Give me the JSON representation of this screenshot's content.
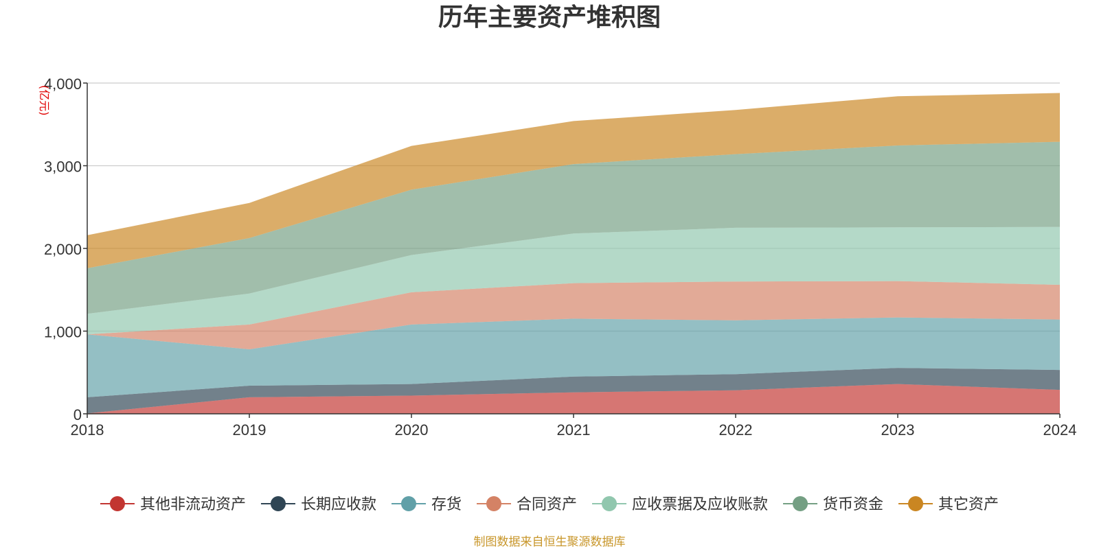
{
  "chart_data": {
    "type": "area",
    "stacked": true,
    "title": "历年主要资产堆积图",
    "ylabel": "(亿元)",
    "xlabel": "",
    "categories": [
      "2018",
      "2019",
      "2020",
      "2021",
      "2022",
      "2023",
      "2024"
    ],
    "ylim": [
      0,
      4000
    ],
    "yticks": [
      0,
      1000,
      2000,
      3000,
      4000
    ],
    "ytick_labels": [
      "0",
      "1,000",
      "2,000",
      "3,000",
      "4,000"
    ],
    "grid": true,
    "legend_position": "bottom",
    "series": [
      {
        "name": "其他非流动资产",
        "color": "#c23531",
        "values": [
          5,
          200,
          220,
          260,
          285,
          360,
          290
        ]
      },
      {
        "name": "长期应收款",
        "color": "#2f4554",
        "values": [
          195,
          140,
          140,
          190,
          195,
          195,
          240
        ]
      },
      {
        "name": "存货",
        "color": "#61a0a8",
        "values": [
          760,
          440,
          720,
          700,
          650,
          610,
          610
        ]
      },
      {
        "name": "合同资产",
        "color": "#d48265",
        "values": [
          0,
          300,
          390,
          430,
          470,
          440,
          420
        ]
      },
      {
        "name": "应收票据及应收账款",
        "color": "#91c7ae",
        "values": [
          250,
          375,
          450,
          600,
          650,
          650,
          700
        ]
      },
      {
        "name": "货币资金",
        "color": "#749f83",
        "values": [
          550,
          670,
          790,
          840,
          890,
          990,
          1030
        ]
      },
      {
        "name": "其它资产",
        "color": "#ca8622",
        "values": [
          400,
          425,
          530,
          520,
          535,
          595,
          590
        ]
      }
    ]
  },
  "source_note": "制图数据来自恒生聚源数据库"
}
